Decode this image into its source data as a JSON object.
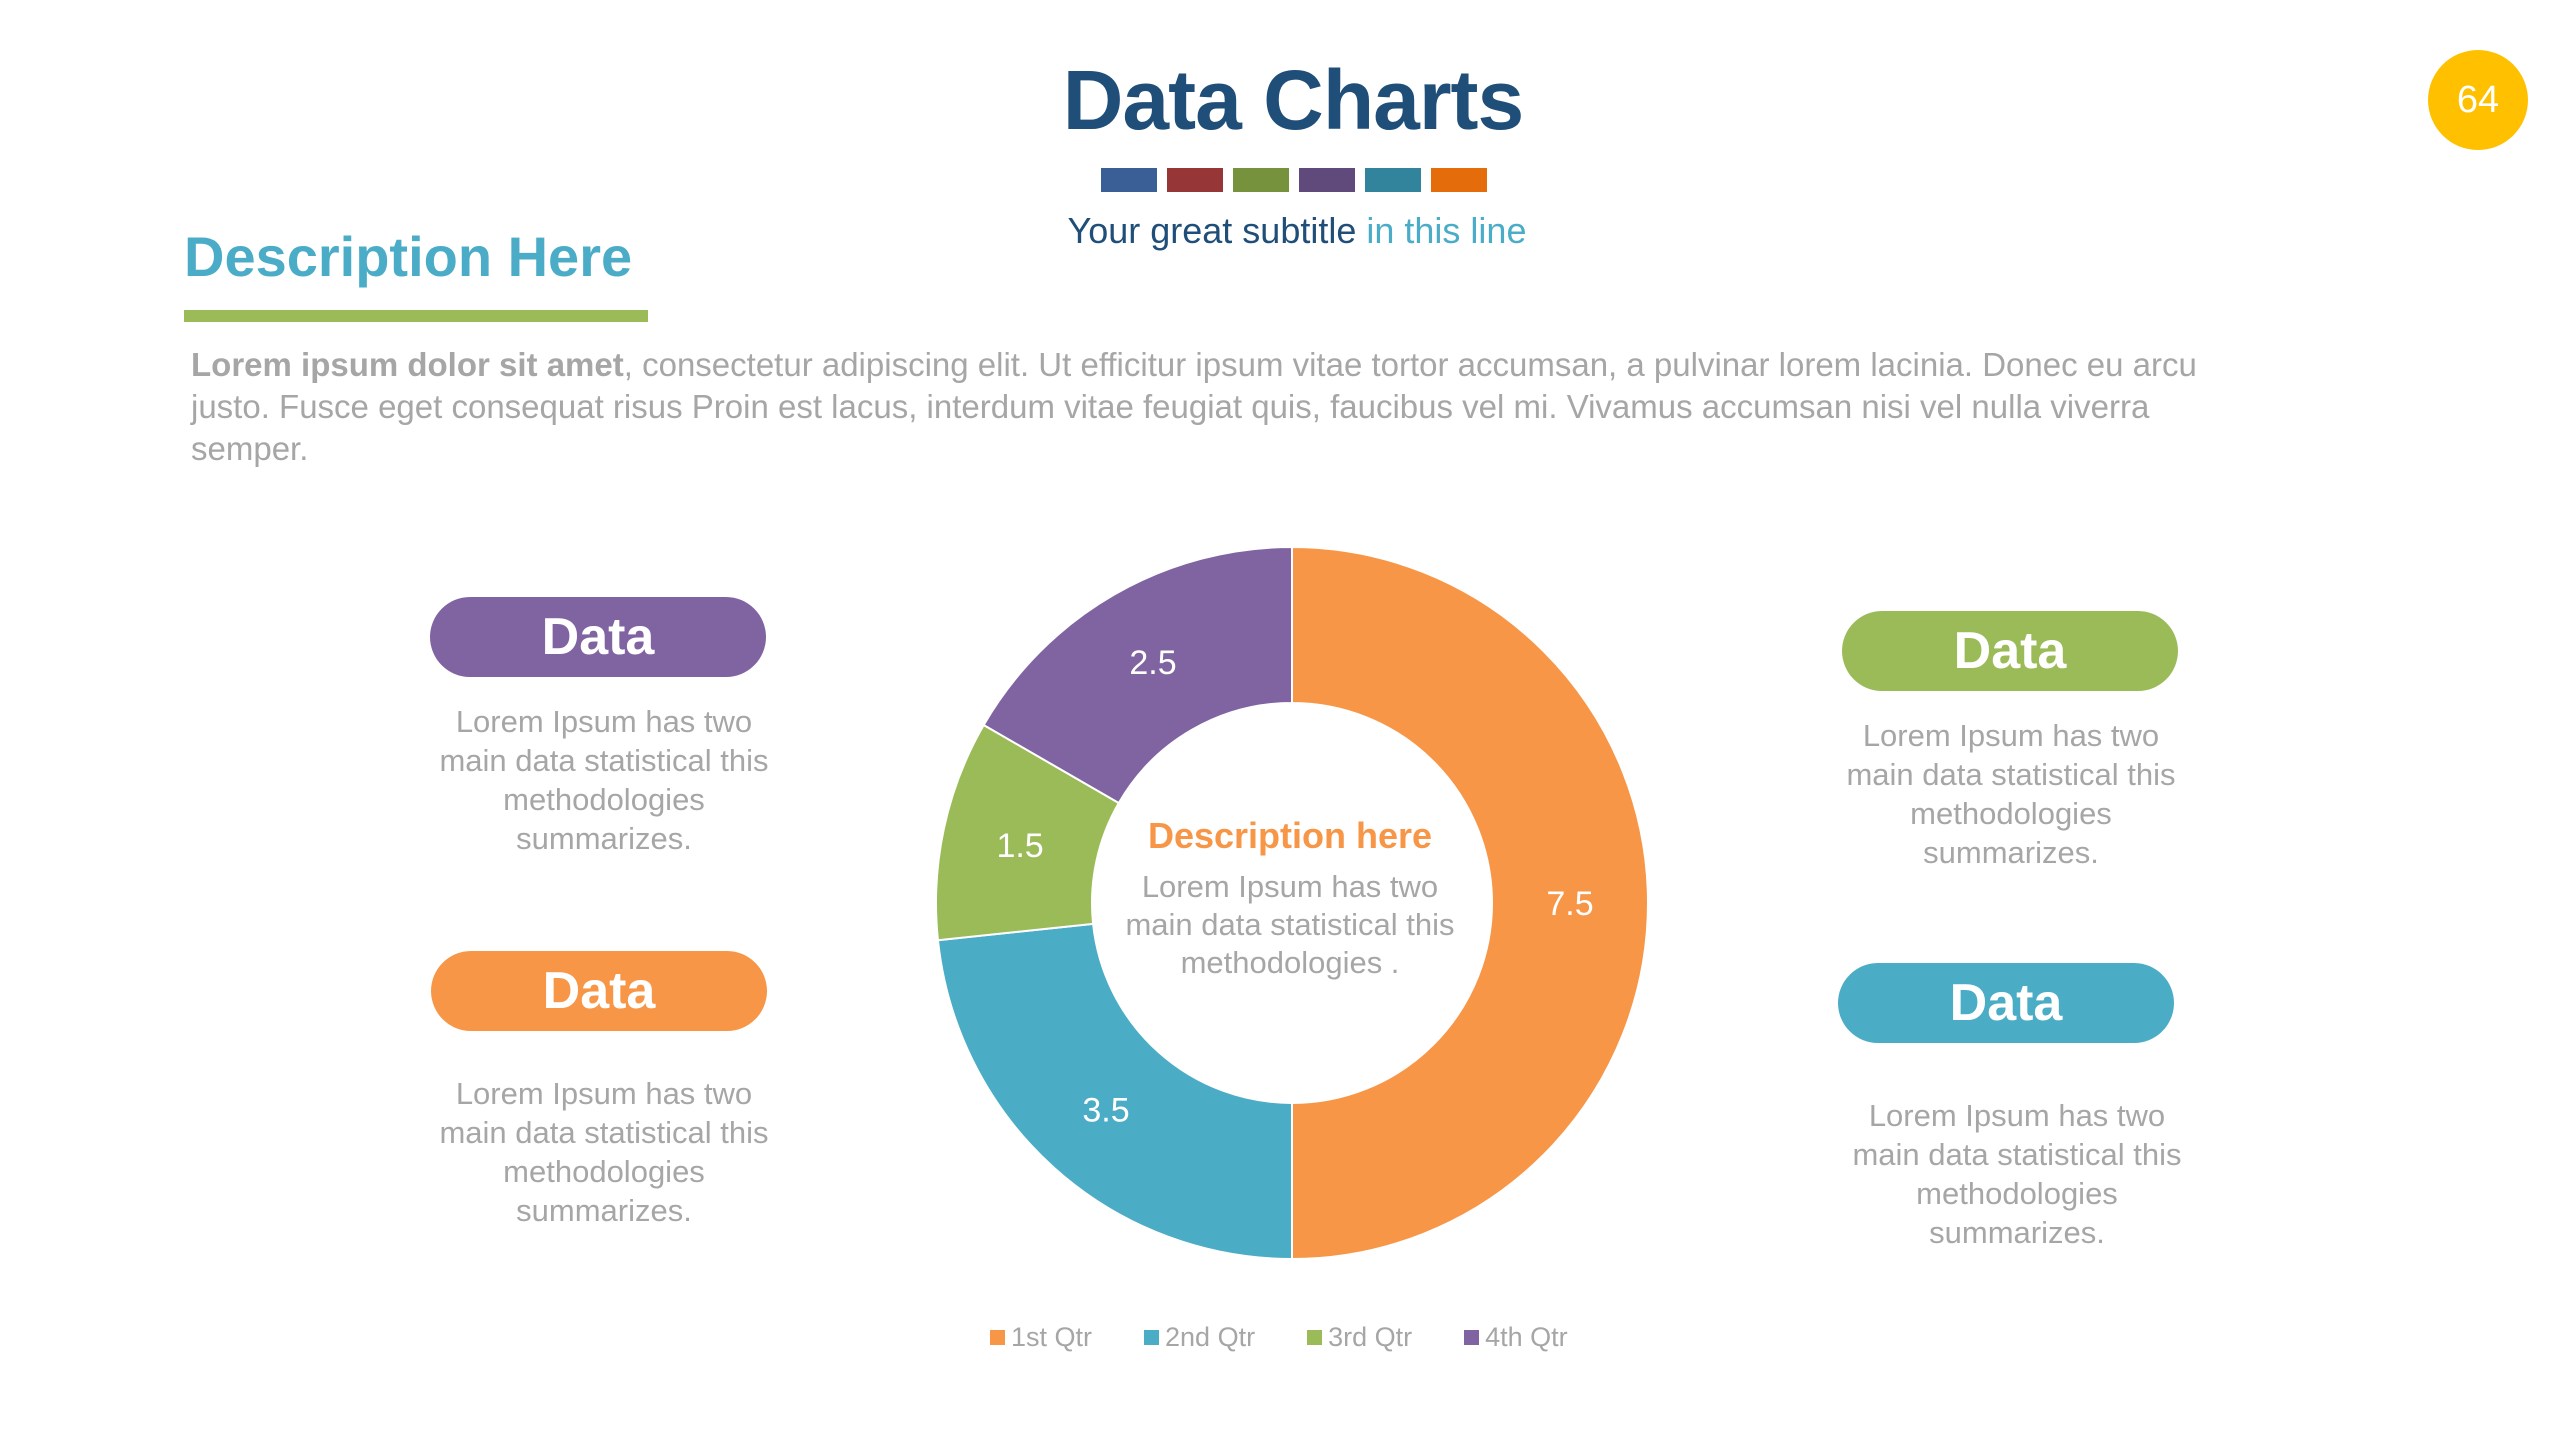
{
  "header": {
    "title": "Data Charts",
    "subtitle_main": "Your great subtitle",
    "subtitle_accent": "in this line",
    "page_number": "64",
    "strip_colors": [
      "#3a5f96",
      "#973636",
      "#76923c",
      "#604a7b",
      "#31849b",
      "#e46c0a"
    ]
  },
  "description": {
    "heading": "Description Here",
    "lead": "Lorem ipsum dolor sit amet",
    "body": ", consectetur adipiscing elit. Ut efficitur ipsum vitae tortor accumsan, a pulvinar lorem lacinia. Donec eu arcu justo. Fusce eget consequat risus Proin est lacus, interdum vitae feugiat quis, faucibus vel mi.  Vivamus accumsan nisi vel nulla viverra semper."
  },
  "cards": {
    "left_top": {
      "label": "Data",
      "text": "Lorem Ipsum has two main data statistical this methodologies summarizes.",
      "color": "#8064a2"
    },
    "left_bottom": {
      "label": "Data",
      "text": "Lorem Ipsum has two main data statistical this methodologies summarizes.",
      "color": "#f79646"
    },
    "right_top": {
      "label": "Data",
      "text": "Lorem Ipsum has two main data statistical this methodologies summarizes.",
      "color": "#9bbb59"
    },
    "right_bottom": {
      "label": "Data",
      "text": "Lorem Ipsum has two main data statistical this methodologies summarizes.",
      "color": "#4bacc6"
    }
  },
  "donut_center": {
    "title": "Description here",
    "text": "Lorem Ipsum has two main data statistical this methodologies ."
  },
  "chart_data": {
    "type": "pie",
    "donut": true,
    "categories": [
      "1st Qtr",
      "2nd Qtr",
      "3rd Qtr",
      "4th Qtr"
    ],
    "values": [
      7.5,
      3.5,
      1.5,
      2.5
    ],
    "data_labels": [
      "7.5",
      "3.5",
      "1.5",
      "2.5"
    ],
    "colors": [
      "#f79646",
      "#4bacc6",
      "#9bbb59",
      "#8064a2"
    ],
    "legend_position": "bottom",
    "title": ""
  }
}
